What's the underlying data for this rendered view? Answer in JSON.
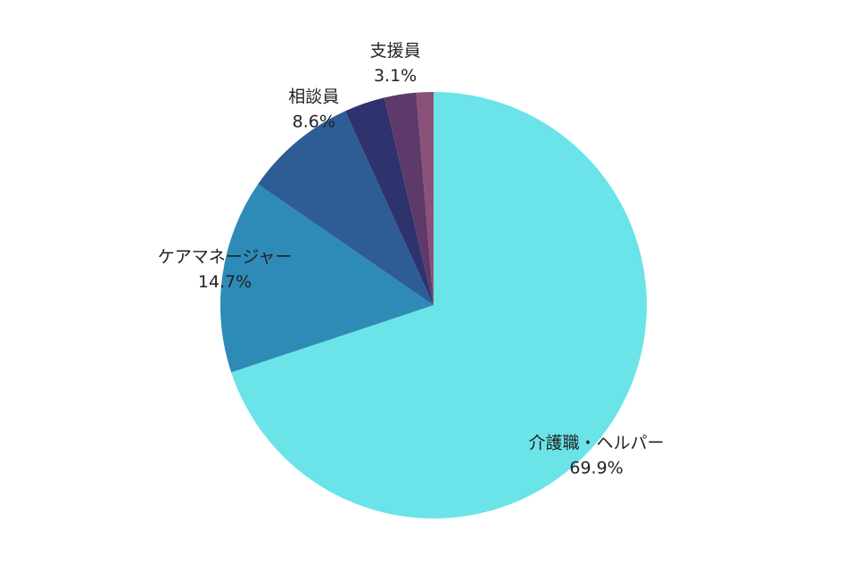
{
  "chart_data": {
    "type": "pie",
    "categories": [
      "介護職・ヘルパー",
      "ケアマネージャー",
      "相談員",
      "支援員",
      null,
      null
    ],
    "values": [
      69.9,
      14.7,
      8.6,
      3.1,
      2.4,
      1.3
    ],
    "value_labels": [
      "69.9%",
      "14.7%",
      "8.6%",
      "3.1%",
      null,
      null
    ],
    "colors": [
      "#6ae4e8",
      "#2e8bb8",
      "#2e5d96",
      "#2e336e",
      "#5e3a6a",
      "#8a5278"
    ]
  }
}
